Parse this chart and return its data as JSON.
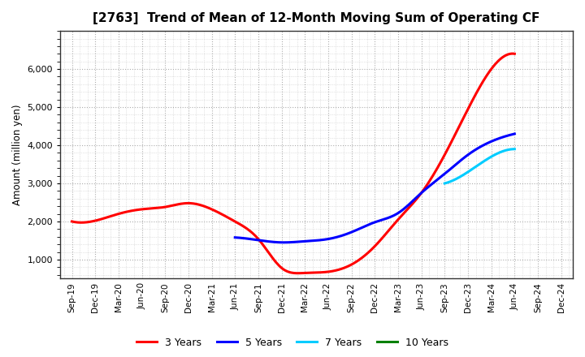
{
  "title": "[2763]  Trend of Mean of 12-Month Moving Sum of Operating CF",
  "ylabel": "Amount (million yen)",
  "background_color": "#ffffff",
  "grid_color": "#999999",
  "x_labels": [
    "Sep-19",
    "Dec-19",
    "Mar-20",
    "Jun-20",
    "Sep-20",
    "Dec-20",
    "Mar-21",
    "Jun-21",
    "Sep-21",
    "Dec-21",
    "Mar-22",
    "Jun-22",
    "Sep-22",
    "Dec-22",
    "Mar-23",
    "Jun-23",
    "Sep-23",
    "Dec-23",
    "Mar-24",
    "Jun-24",
    "Sep-24",
    "Dec-24"
  ],
  "series": [
    {
      "label": "3 Years",
      "color": "#ff0000",
      "linewidth": 2.2,
      "data_x": [
        0,
        1,
        2,
        3,
        4,
        5,
        6,
        7,
        8,
        9,
        10,
        11,
        12,
        13,
        14,
        15,
        16,
        17,
        18,
        19
      ],
      "data_y": [
        2000,
        2020,
        2200,
        2320,
        2380,
        2480,
        2320,
        2000,
        1540,
        780,
        650,
        680,
        870,
        1350,
        2050,
        2750,
        3750,
        4950,
        6000,
        6400
      ]
    },
    {
      "label": "5 Years",
      "color": "#0000ff",
      "linewidth": 2.2,
      "data_x": [
        7,
        8,
        9,
        10,
        11,
        12,
        13,
        14,
        15,
        16,
        17,
        18,
        19
      ],
      "data_y": [
        1580,
        1510,
        1450,
        1480,
        1540,
        1720,
        1980,
        2220,
        2750,
        3250,
        3750,
        4100,
        4300
      ]
    },
    {
      "label": "7 Years",
      "color": "#00ccff",
      "linewidth": 2.2,
      "data_x": [
        16,
        17,
        18,
        19
      ],
      "data_y": [
        3000,
        3300,
        3700,
        3900
      ]
    },
    {
      "label": "10 Years",
      "color": "#008000",
      "linewidth": 2.2,
      "data_x": [],
      "data_y": []
    }
  ],
  "ylim": [
    500,
    7000
  ],
  "yticks": [
    1000,
    2000,
    3000,
    4000,
    5000,
    6000
  ],
  "xlim_min": -0.5,
  "xlim_max": 21.5
}
